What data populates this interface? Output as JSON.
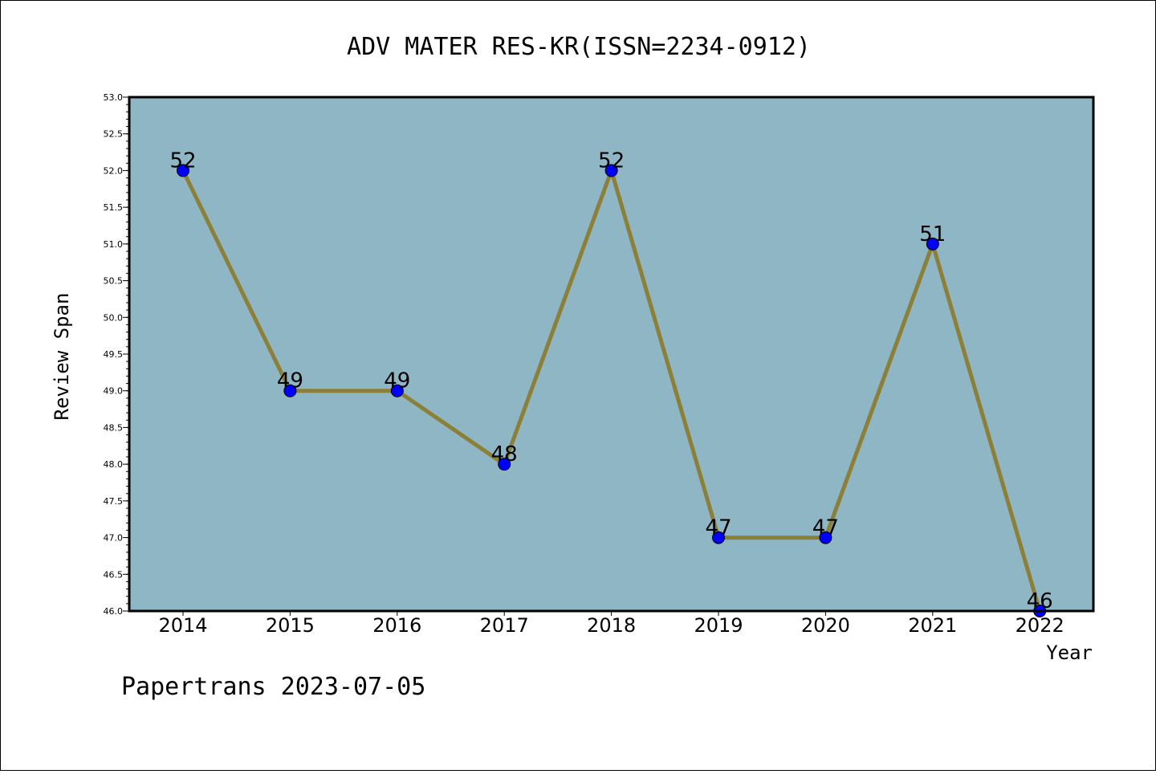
{
  "chart_data": {
    "type": "line",
    "title": "ADV MATER RES-KR(ISSN=2234-0912)",
    "xlabel": "Year",
    "ylabel": "Review Span",
    "categories": [
      "2014",
      "2015",
      "2016",
      "2017",
      "2018",
      "2019",
      "2020",
      "2021",
      "2022"
    ],
    "values": [
      52,
      49,
      49,
      48,
      52,
      47,
      47,
      51,
      46
    ],
    "data_labels": [
      "52",
      "49",
      "49",
      "48",
      "52",
      "47",
      "47",
      "51",
      "46"
    ],
    "ylim": [
      46.0,
      53.0
    ],
    "yticks": [
      "46.0",
      "46.5",
      "47.0",
      "47.5",
      "48.0",
      "48.5",
      "49.0",
      "49.5",
      "50.0",
      "50.5",
      "51.0",
      "51.5",
      "52.0",
      "52.5",
      "53.0"
    ],
    "grid": false,
    "colors": {
      "plot_background": "#8fb6c4",
      "line": "#8c8038",
      "marker": "#0000ff"
    }
  },
  "footer": "Papertrans 2023-07-05"
}
